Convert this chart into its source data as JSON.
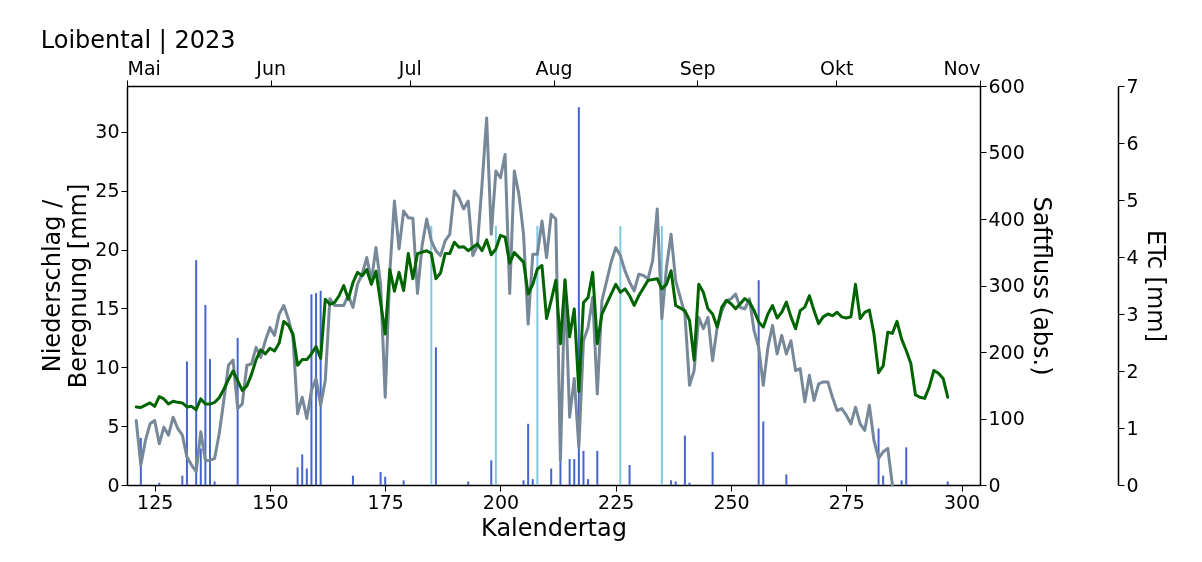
{
  "chart_data": {
    "type": "line",
    "title": "Loibental | 2023",
    "xlabel": "Kalendertag",
    "ylabel": "Niederschlag / Beregnung [mm]",
    "y2label": "Saftfluss (abs.)",
    "y3label": "ETc [mm]",
    "xlim": [
      119,
      304
    ],
    "xticks": [
      125,
      150,
      175,
      200,
      225,
      250,
      275,
      300
    ],
    "x2lim": [
      "2023-05-01",
      "2023-11-01"
    ],
    "x2ticks": [
      {
        "value": "2023-05-01",
        "label": "Mai"
      },
      {
        "value": "2023-06-01",
        "label": "Jun"
      },
      {
        "value": "2023-07-01",
        "label": "Jul"
      },
      {
        "value": "2023-08-01",
        "label": "Aug"
      },
      {
        "value": "2023-09-01",
        "label": "Sep"
      },
      {
        "value": "2023-10-01",
        "label": "Okt"
      },
      {
        "value": "2023-11-01",
        "label": "Nov"
      }
    ],
    "ylim": [
      0,
      33.9
    ],
    "yticks": [
      0,
      5,
      10,
      15,
      20,
      25,
      30
    ],
    "y2lim": [
      0,
      600
    ],
    "y2ticks": [
      0,
      100,
      200,
      300,
      400,
      500,
      600
    ],
    "y3lim": [
      0,
      7
    ],
    "y3ticks": [
      0,
      1,
      2,
      3,
      4,
      5,
      6,
      7
    ],
    "grid": false,
    "series": [
      {
        "type": "bar",
        "color": "#4466cc",
        "x": [
          122,
          126,
          131,
          132,
          134,
          135,
          136,
          137,
          138,
          143,
          156,
          157,
          158,
          159,
          160,
          161,
          168,
          174,
          175,
          179,
          186,
          193,
          198,
          205,
          206,
          207,
          211,
          213,
          215,
          216,
          217,
          218,
          219,
          221,
          228,
          237,
          238,
          240,
          241,
          246,
          256,
          257,
          262,
          282,
          283,
          287,
          288,
          297
        ],
        "values": [
          4.0,
          0.2,
          0.8,
          10.5,
          19.1,
          3.1,
          15.3,
          10.7,
          0.3,
          12.5,
          1.5,
          2.6,
          1.4,
          16.2,
          16.3,
          16.5,
          0.8,
          1.1,
          0.7,
          0.4,
          11.7,
          0.3,
          2.1,
          0.4,
          5.2,
          0.5,
          1.4,
          2.1,
          2.2,
          2.2,
          32.1,
          2.9,
          0.5,
          2.9,
          1.7,
          0.4,
          0.3,
          4.2,
          0.2,
          2.8,
          17.4,
          5.4,
          0.9,
          4.8,
          0.8,
          0.4,
          3.2,
          0.3
        ]
      },
      {
        "type": "bar",
        "color": "#7ec8e3",
        "x": [
          185,
          199,
          208,
          226,
          235
        ],
        "values": [
          22,
          22,
          22,
          22,
          22
        ]
      },
      {
        "color": "#778899",
        "axis": "y2",
        "x": [
          121,
          122,
          123,
          124,
          125,
          126,
          127,
          128,
          129,
          130,
          131,
          132,
          133,
          134,
          135,
          136,
          137,
          138,
          139,
          140,
          141,
          142,
          143,
          144,
          145,
          146,
          147,
          148,
          149,
          150,
          151,
          152,
          153,
          154,
          155,
          156,
          157,
          158,
          159,
          160,
          161,
          162,
          163,
          164,
          166,
          167,
          168,
          169,
          170,
          171,
          172,
          173,
          174,
          175,
          176,
          177,
          178,
          179,
          180,
          181,
          182,
          183,
          184,
          185,
          186,
          187,
          188,
          189,
          190,
          191,
          192,
          193,
          194,
          195,
          196,
          197,
          198,
          199,
          200,
          201,
          202,
          203,
          204,
          205,
          206,
          207,
          208,
          209,
          210,
          211,
          212,
          213,
          214,
          215,
          216,
          217,
          218,
          219,
          220,
          221,
          222,
          224,
          225,
          226,
          227,
          228,
          229,
          230,
          231,
          232,
          233,
          234,
          235,
          236,
          237,
          238,
          240,
          241,
          242,
          243,
          244,
          245,
          246,
          247,
          248,
          249,
          250,
          251,
          252,
          253,
          254,
          255,
          256,
          257,
          258,
          259,
          260,
          261,
          262,
          263,
          264,
          265,
          266,
          267,
          268,
          269,
          270,
          271,
          272,
          273,
          274,
          275,
          276,
          277,
          278,
          279,
          280,
          281,
          282,
          283,
          284,
          285
        ],
        "values": [
          97,
          30,
          67,
          92,
          97,
          62,
          87,
          75,
          102,
          85,
          75,
          42,
          30,
          20,
          80,
          37,
          37,
          40,
          77,
          127,
          180,
          188,
          115,
          122,
          180,
          182,
          207,
          192,
          217,
          237,
          225,
          257,
          270,
          250,
          222,
          107,
          132,
          100,
          142,
          160,
          120,
          157,
          280,
          270,
          270,
          285,
          267,
          302,
          317,
          342,
          307,
          357,
          302,
          132,
          320,
          427,
          355,
          412,
          402,
          401,
          288,
          360,
          400,
          367,
          352,
          345,
          367,
          377,
          442,
          432,
          415,
          427,
          345,
          360,
          452,
          552,
          377,
          472,
          462,
          497,
          288,
          472,
          437,
          377,
          242,
          347,
          347,
          397,
          342,
          407,
          400,
          37,
          307,
          102,
          160,
          57,
          217,
          237,
          282,
          137,
          277,
          335,
          357,
          345,
          322,
          305,
          292,
          317,
          315,
          310,
          337,
          415,
          250,
          327,
          377,
          307,
          257,
          150,
          172,
          252,
          235,
          252,
          187,
          237,
          262,
          277,
          280,
          287,
          267,
          265,
          280,
          232,
          207,
          150,
          207,
          240,
          197,
          225,
          197,
          217,
          172,
          175,
          125,
          165,
          127,
          152,
          155,
          155,
          132,
          112,
          115,
          105,
          92,
          117,
          92,
          82,
          120,
          67,
          40,
          50,
          55,
          0
        ]
      },
      {
        "color": "#006400",
        "axis": "y3",
        "x": [
          121,
          122,
          123,
          124,
          125,
          126,
          127,
          128,
          129,
          130,
          131,
          132,
          133,
          134,
          135,
          136,
          137,
          138,
          139,
          140,
          141,
          142,
          143,
          144,
          145,
          146,
          147,
          148,
          149,
          150,
          151,
          152,
          153,
          154,
          155,
          156,
          157,
          158,
          159,
          160,
          161,
          162,
          163,
          164,
          165,
          166,
          167,
          168,
          169,
          170,
          171,
          172,
          173,
          175,
          176,
          177,
          178,
          179,
          180,
          181,
          182,
          184,
          185,
          186,
          187,
          188,
          189,
          190,
          191,
          192,
          193,
          195,
          196,
          197,
          198,
          199,
          200,
          201,
          202,
          203,
          205,
          206,
          207,
          208,
          209,
          210,
          211,
          212,
          213,
          214,
          215,
          216,
          217,
          218,
          219,
          220,
          221,
          222,
          224,
          225,
          226,
          227,
          228,
          229,
          230,
          232,
          234,
          235,
          236,
          237,
          238,
          240,
          241,
          242,
          243,
          244,
          245,
          246,
          247,
          248,
          249,
          250,
          251,
          252,
          253,
          254,
          255,
          256,
          257,
          258,
          259,
          260,
          261,
          262,
          263,
          264,
          265,
          266,
          267,
          268,
          269,
          270,
          271,
          272,
          273,
          274,
          275,
          276,
          277,
          278,
          279,
          280,
          281,
          282,
          283,
          284,
          285,
          286,
          287,
          288,
          289,
          290,
          291,
          292,
          293,
          294,
          295,
          296,
          297
        ],
        "values": [
          1.37,
          1.36,
          1.4,
          1.44,
          1.38,
          1.55,
          1.51,
          1.42,
          1.47,
          1.45,
          1.44,
          1.37,
          1.38,
          1.32,
          1.51,
          1.42,
          1.42,
          1.45,
          1.53,
          1.68,
          1.85,
          2.0,
          1.83,
          1.66,
          1.74,
          1.94,
          2.2,
          2.37,
          2.3,
          2.4,
          2.35,
          2.49,
          2.87,
          2.8,
          2.65,
          2.1,
          2.2,
          2.2,
          2.3,
          2.43,
          2.22,
          3.26,
          3.17,
          3.2,
          3.32,
          3.5,
          3.26,
          3.55,
          3.73,
          3.67,
          3.78,
          3.52,
          3.75,
          2.65,
          3.78,
          3.4,
          3.73,
          3.41,
          4.06,
          3.62,
          4.06,
          4.11,
          4.06,
          3.62,
          3.72,
          4.06,
          4.06,
          4.26,
          4.17,
          4.18,
          4.11,
          4.23,
          4.11,
          4.3,
          4.04,
          4.14,
          4.38,
          4.35,
          3.89,
          4.08,
          3.91,
          3.35,
          3.52,
          3.79,
          3.85,
          2.92,
          3.24,
          3.59,
          2.48,
          3.6,
          2.6,
          3.09,
          1.64,
          3.2,
          3.29,
          3.73,
          2.48,
          3.0,
          3.35,
          3.52,
          3.38,
          3.44,
          3.32,
          3.15,
          3.32,
          3.59,
          3.62,
          3.44,
          3.52,
          3.76,
          3.15,
          3.06,
          2.89,
          2.19,
          3.52,
          3.38,
          3.09,
          3.0,
          2.77,
          3.12,
          3.24,
          3.18,
          3.09,
          3.18,
          3.27,
          3.21,
          3.06,
          2.86,
          2.77,
          3.0,
          3.15,
          2.93,
          3.03,
          3.21,
          2.95,
          2.74,
          3.06,
          3.12,
          3.32,
          3.06,
          2.83,
          2.95,
          3.0,
          2.97,
          3.03,
          2.95,
          2.93,
          2.95,
          3.52,
          2.92,
          3.03,
          3.07,
          2.65,
          1.97,
          2.09,
          2.68,
          2.66,
          2.87,
          2.56,
          2.36,
          2.13,
          1.58,
          1.54,
          1.52,
          1.72,
          2.01,
          1.96,
          1.87,
          1.54
        ]
      }
    ]
  }
}
